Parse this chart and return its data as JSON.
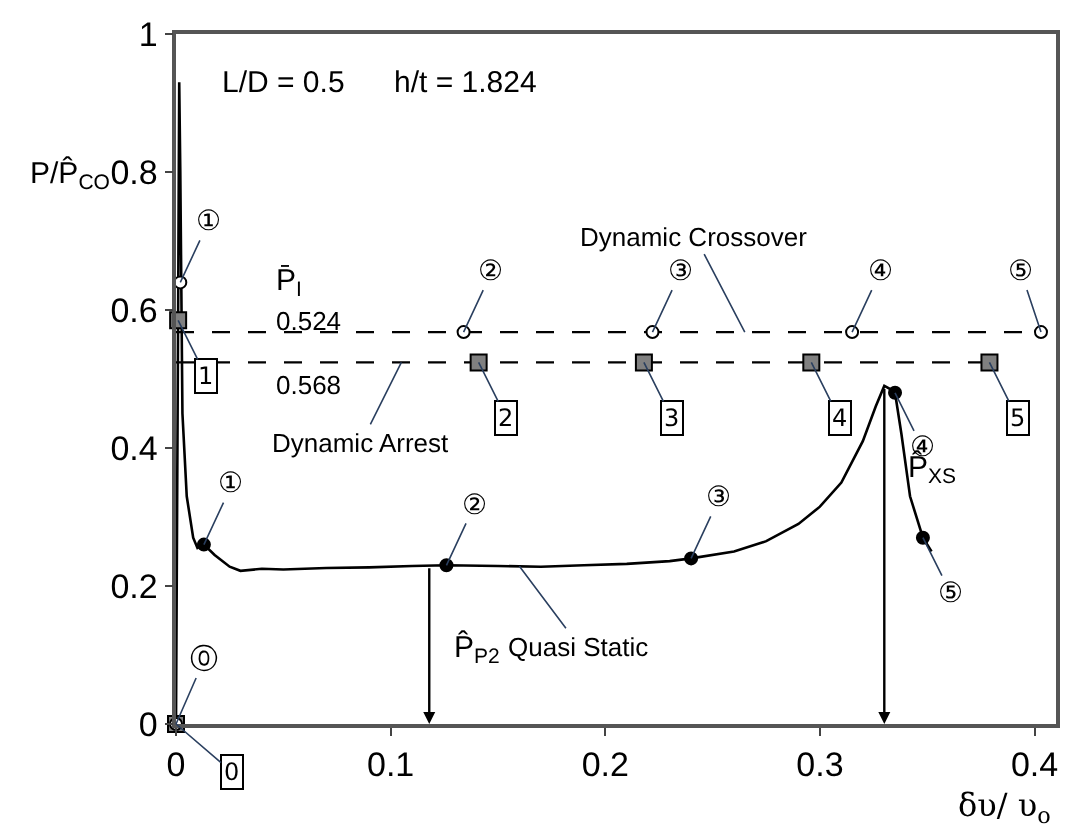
{
  "chart_data": {
    "type": "line",
    "xlabel": "δυ/ υ$_{o}$",
    "ylabel": "P/P̂$_{CO}$",
    "xlim": [
      0,
      0.41
    ],
    "ylim": [
      0,
      1
    ],
    "xticks": [
      0,
      0.1,
      0.2,
      0.3,
      0.4
    ],
    "yticks": [
      0,
      0.2,
      0.4,
      0.6,
      0.8,
      1
    ],
    "legend": false,
    "series": [
      {
        "name": "Quasi Static",
        "color": "#000000",
        "line_style": "solid",
        "marker": "none",
        "x": [
          0,
          0.0005,
          0.001,
          0.0015,
          0.002,
          0.003,
          0.005,
          0.008,
          0.01,
          0.013,
          0.018,
          0.025,
          0.03,
          0.04,
          0.05,
          0.07,
          0.09,
          0.11,
          0.126,
          0.15,
          0.17,
          0.19,
          0.21,
          0.23,
          0.24,
          0.26,
          0.275,
          0.29,
          0.3,
          0.31,
          0.32,
          0.326,
          0.33,
          0.333,
          0.335,
          0.338,
          0.342,
          0.348,
          0.352
        ],
        "values": [
          0,
          0.3,
          0.6,
          0.93,
          0.8,
          0.45,
          0.33,
          0.27,
          0.255,
          0.26,
          0.245,
          0.228,
          0.222,
          0.225,
          0.224,
          0.226,
          0.227,
          0.229,
          0.23,
          0.229,
          0.228,
          0.23,
          0.232,
          0.236,
          0.24,
          0.25,
          0.265,
          0.29,
          0.315,
          0.35,
          0.41,
          0.46,
          0.49,
          0.485,
          0.48,
          0.42,
          0.33,
          0.27,
          0.25
        ]
      },
      {
        "name": "Dynamic Crossover",
        "color": "#000000",
        "line_style": "dashed",
        "marker": "none",
        "x": [
          0,
          0.403
        ],
        "values": [
          0.568,
          0.568
        ]
      },
      {
        "name": "Dynamic Arrest",
        "color": "#000000",
        "line_style": "dashed",
        "marker": "none",
        "x": [
          0,
          0.379
        ],
        "values": [
          0.524,
          0.524
        ]
      },
      {
        "type": "scatter",
        "color": "#000000",
        "marker": "circle",
        "x": [
          0.013,
          0.126,
          0.24,
          0.335,
          0.348
        ],
        "values": [
          0.26,
          0.23,
          0.24,
          0.48,
          0.27
        ]
      },
      {
        "type": "scatter",
        "color": "#ffffff",
        "marker": "circle",
        "x": [
          0,
          0.002,
          0.134,
          0.222,
          0.315,
          0.403
        ],
        "values": [
          0,
          0.64,
          0.568,
          0.568,
          0.568,
          0.568
        ]
      },
      {
        "type": "scatter",
        "color": "#808080",
        "marker": "square",
        "x": [
          0,
          0.001,
          0.141,
          0.218,
          0.296,
          0.379
        ],
        "values": [
          0,
          0.585,
          0.524,
          0.524,
          0.524,
          0.524
        ]
      }
    ],
    "annotations": [
      {
        "text": "P̂$_{P2}$",
        "x": 0.118,
        "y": 0.23
      },
      {
        "text": "P̂$_{XS}$",
        "x": 0.33,
        "y": 0.49
      },
      {
        "text": "①",
        "x": 0.013,
        "y": 0.26
      },
      {
        "text": "②",
        "x": 0.126,
        "y": 0.23
      },
      {
        "text": "③",
        "x": 0.24,
        "y": 0.24
      },
      {
        "text": "④",
        "x": 0.335,
        "y": 0.48
      },
      {
        "text": "⑤",
        "x": 0.348,
        "y": 0.27
      },
      {
        "text": "⓪",
        "x": 0,
        "y": 0
      },
      {
        "text": "①",
        "x": 0.002,
        "y": 0.64
      },
      {
        "text": "②",
        "x": 0.134,
        "y": 0.568
      },
      {
        "text": "③",
        "x": 0.222,
        "y": 0.568
      },
      {
        "text": "④",
        "x": 0.315,
        "y": 0.568
      },
      {
        "text": "⑤",
        "x": 0.403,
        "y": 0.568
      },
      {
        "text": "0",
        "x": 0,
        "y": 0
      },
      {
        "text": "1",
        "x": 0.001,
        "y": 0.585
      },
      {
        "text": "2",
        "x": 0.141,
        "y": 0.524
      },
      {
        "text": "3",
        "x": 0.218,
        "y": 0.524
      },
      {
        "text": "4",
        "x": 0.296,
        "y": 0.524
      },
      {
        "text": "5",
        "x": 0.379,
        "y": 0.524
      },
      "L/D = 0.5",
      "h/t = 1.824",
      "P̄$_{I}$",
      "0.524",
      "0.568"
    ]
  }
}
